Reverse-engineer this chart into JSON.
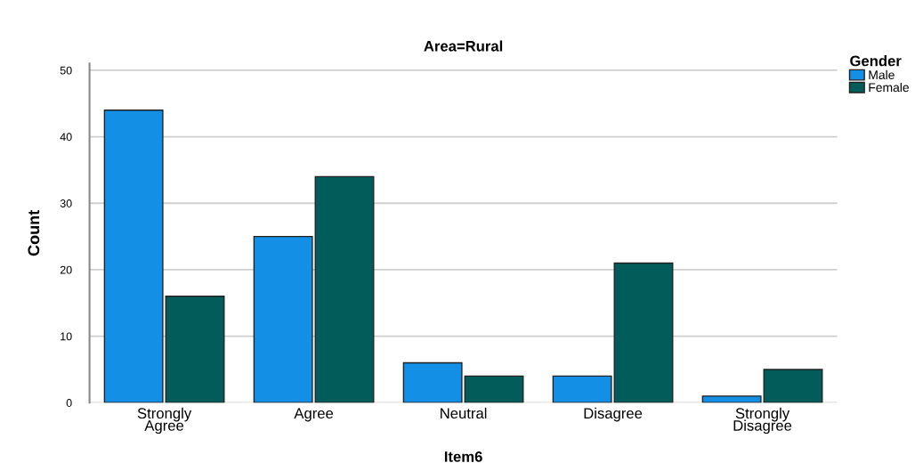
{
  "chart_data": {
    "type": "bar",
    "title": "Area=Rural",
    "xlabel": "Item6",
    "ylabel": "Count",
    "categories": [
      "Strongly\nAgree",
      "Agree",
      "Neutral",
      "Disagree",
      "Strongly\nDisagree"
    ],
    "series": [
      {
        "name": "Male",
        "color": "#1390e6",
        "values": [
          44,
          25,
          6,
          4,
          1
        ]
      },
      {
        "name": "Female",
        "color": "#015c5a",
        "values": [
          16,
          34,
          4,
          21,
          5
        ]
      }
    ],
    "legend_title": "Gender",
    "legend": "top right",
    "ylim": [
      0,
      51
    ],
    "yticks": [
      0,
      10,
      20,
      30,
      40,
      50
    ],
    "grid": "y"
  }
}
